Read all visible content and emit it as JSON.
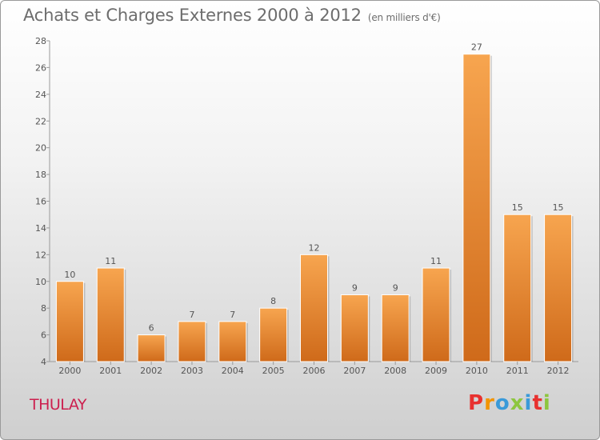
{
  "chart_data": {
    "type": "bar",
    "title": "Achats et Charges Externes 2000 à 2012",
    "subtitle": "(en milliers d'€)",
    "categories": [
      "2000",
      "2001",
      "2002",
      "2003",
      "2004",
      "2005",
      "2006",
      "2007",
      "2008",
      "2009",
      "2010",
      "2011",
      "2012"
    ],
    "values": [
      10,
      11,
      6,
      7,
      7,
      8,
      12,
      9,
      9,
      11,
      27,
      15,
      15
    ],
    "ylim": [
      4,
      28
    ],
    "yticks": [
      4,
      6,
      8,
      10,
      12,
      14,
      16,
      18,
      20,
      22,
      24,
      26,
      28
    ],
    "grid": false,
    "bar_color_top": "#f7a54f",
    "bar_color_bottom": "#cf6a1a"
  },
  "footer": {
    "town": "THULAY",
    "town_color": "#cc1f4e",
    "logo": "Proxiti"
  }
}
